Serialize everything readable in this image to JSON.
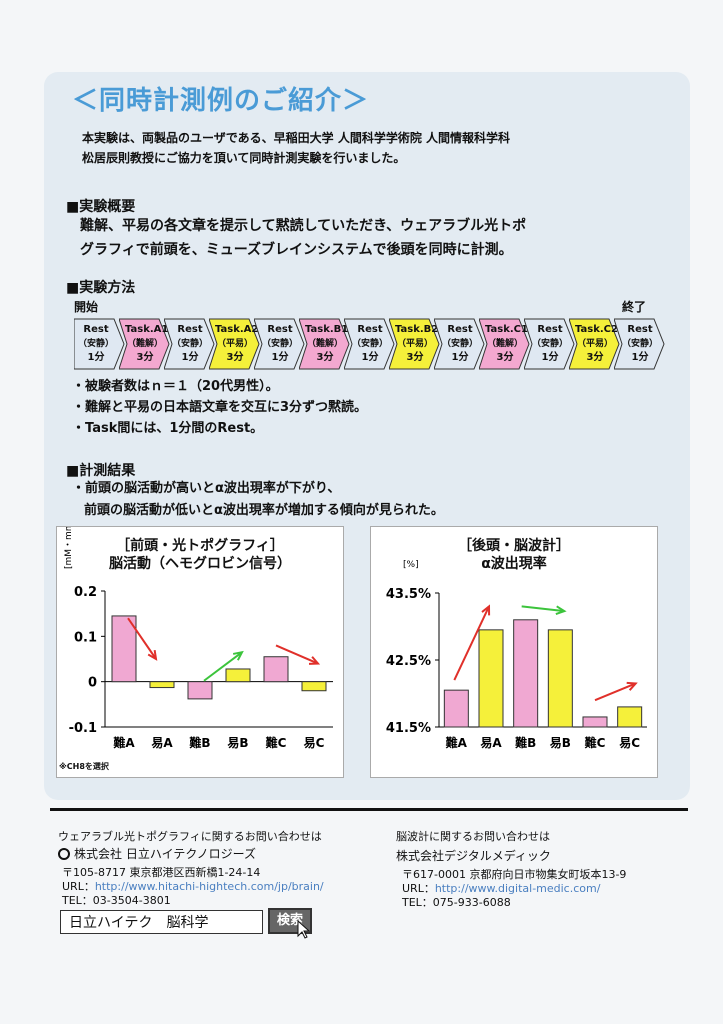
{
  "title": "＜同時計測例のご紹介＞",
  "intro": {
    "line1": "本実験は、両製品のユーザである、早稲田大学 人間科学学術院 人間情報科学科",
    "line2": "松居辰則教授にご協力を頂いて同時計測実験を行いました。"
  },
  "overview": {
    "heading": "■実験概要",
    "line1": "難解、平易の各文章を提示して黙読していただき、ウェアラブル光トポ",
    "line2": "グラフィで前頭を、ミューズブレインシステムで後頭を同時に計測。"
  },
  "method": {
    "heading": "■実験方法",
    "start_label": "開始",
    "end_label": "終了",
    "timeline": [
      {
        "name": "Rest",
        "kind": "（安静）",
        "dur": "1分",
        "color": "#dfe8f2"
      },
      {
        "name": "Task.A1",
        "kind": "（難解）",
        "dur": "3分",
        "color": "#f3a8d0"
      },
      {
        "name": "Rest",
        "kind": "（安静）",
        "dur": "1分",
        "color": "#dfe8f2"
      },
      {
        "name": "Task.A2",
        "kind": "（平易）",
        "dur": "3分",
        "color": "#f5f03a"
      },
      {
        "name": "Rest",
        "kind": "（安静）",
        "dur": "1分",
        "color": "#dfe8f2"
      },
      {
        "name": "Task.B1",
        "kind": "（難解）",
        "dur": "3分",
        "color": "#f3a8d0"
      },
      {
        "name": "Rest",
        "kind": "（安静）",
        "dur": "1分",
        "color": "#dfe8f2"
      },
      {
        "name": "Task.B2",
        "kind": "（平易）",
        "dur": "3分",
        "color": "#f5f03a"
      },
      {
        "name": "Rest",
        "kind": "（安静）",
        "dur": "1分",
        "color": "#dfe8f2"
      },
      {
        "name": "Task.C1",
        "kind": "（難解）",
        "dur": "3分",
        "color": "#f3a8d0"
      },
      {
        "name": "Rest",
        "kind": "（安静）",
        "dur": "1分",
        "color": "#dfe8f2"
      },
      {
        "name": "Task.C2",
        "kind": "（平易）",
        "dur": "3分",
        "color": "#f5f03a"
      },
      {
        "name": "Rest",
        "kind": "（安静）",
        "dur": "1分",
        "color": "#dfe8f2"
      }
    ],
    "bullets": [
      "・被験者数はｎ＝１（20代男性）。",
      "・難解と平易の日本語文章を交互に3分ずつ黙読。",
      "・Task間には、1分間のRest。"
    ]
  },
  "results": {
    "heading": "■計測結果",
    "line1": "・前頭の脳活動が高いとα波出現率が下がり、",
    "line2": "前頭の脳活動が低いとα波出現率が増加する傾向が見られた。"
  },
  "chart_data": [
    {
      "type": "bar",
      "title": "［前頭・光トポグラフィ］",
      "subtitle": "脳活動（ヘモグロビン信号）",
      "ylabel": "[mM・mm]",
      "categories": [
        "難A",
        "易A",
        "難B",
        "易B",
        "難C",
        "易C"
      ],
      "values": [
        0.145,
        -0.013,
        -0.038,
        0.028,
        0.055,
        -0.02
      ],
      "bar_colors": [
        "#f0a8d2",
        "#f5f03a",
        "#f0a8d2",
        "#f5f03a",
        "#f0a8d2",
        "#f5f03a"
      ],
      "ylim": [
        -0.1,
        0.2
      ],
      "yticks": [
        "0.2",
        "0.1",
        "0",
        "-0.1"
      ],
      "ytick_values": [
        0.2,
        0.1,
        0,
        -0.1
      ],
      "note": "※CH8を選択"
    },
    {
      "type": "bar",
      "title": "［後頭・脳波計］",
      "subtitle": "α波出現率",
      "ylabel": "[%]",
      "categories": [
        "難A",
        "易A",
        "難B",
        "易B",
        "難C",
        "易C"
      ],
      "values": [
        42.05,
        42.95,
        43.1,
        42.95,
        41.65,
        41.8
      ],
      "bar_colors": [
        "#f0a8d2",
        "#f5f03a",
        "#f0a8d2",
        "#f5f03a",
        "#f0a8d2",
        "#f5f03a"
      ],
      "ylim": [
        41.5,
        43.5
      ],
      "yticks": [
        "43.5%",
        "42.5%",
        "41.5%"
      ],
      "ytick_values": [
        43.5,
        42.5,
        41.5
      ]
    }
  ],
  "footer": {
    "left": {
      "inquiry": "ウェアラブル光トポグラフィに関するお問い合わせは",
      "company": "株式会社 日立ハイテクノロジーズ",
      "address": "〒105-8717 東京都港区西新橋1-24-14",
      "url_label": "URL：",
      "url": "http://www.hitachi-hightech.com/jp/brain/",
      "tel": "TEL：03-3504-3801"
    },
    "right": {
      "inquiry": "脳波計に関するお問い合わせは",
      "company": "株式会社デジタルメディック",
      "address": "〒617-0001 京都府向日市物集女町坂本13-9",
      "url_label": "URL：",
      "url": "http://www.digital-medic.com/",
      "tel": "TEL：075-933-6088"
    },
    "search_text": "日立ハイテク　脳科学",
    "search_button": "検索"
  },
  "colors": {
    "title": "#4a9bd6",
    "difficult": "#f0a8d2",
    "easy": "#f5f03a",
    "rest": "#dfe8f2",
    "arrow_red": "#e0302a",
    "arrow_green": "#3cc43c"
  }
}
